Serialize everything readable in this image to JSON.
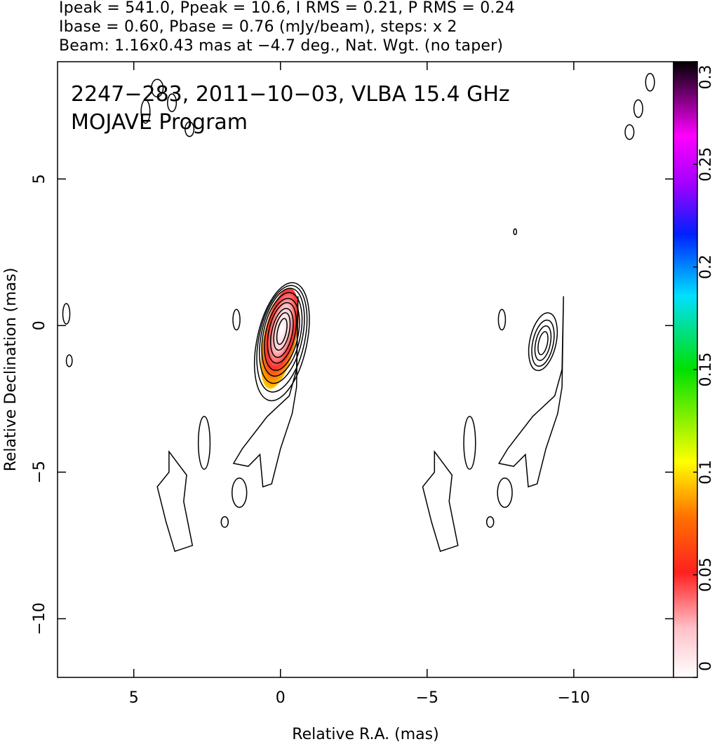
{
  "header": {
    "line1": "Ipeak = 541.0, Ppeak = 10.6, I RMS = 0.21, P RMS = 0.24",
    "line2": "Ibase = 0.60, Pbase = 0.76 (mJy/beam), steps: x 2",
    "line3": "Beam: 1.16x0.43 mas at −4.7 deg., Nat. Wgt. (no taper)"
  },
  "chart_data": {
    "type": "contour",
    "source_label": "2247−283, 2011−10−03, VLBA 15.4 GHz",
    "program_label": "MOJAVE Program",
    "xlabel": "Relative R.A. (mas)",
    "ylabel": "Relative Declination (mas)",
    "xlim": [
      7.6,
      -13.4
    ],
    "ylim": [
      -12.0,
      9.0
    ],
    "x_ticks": [
      {
        "value": 5,
        "label": "5"
      },
      {
        "value": 0,
        "label": "0"
      },
      {
        "value": -5,
        "label": "−5"
      },
      {
        "value": -10,
        "label": "−10"
      }
    ],
    "y_ticks": [
      {
        "value": 5,
        "label": "5"
      },
      {
        "value": 0,
        "label": "0"
      },
      {
        "value": -5,
        "label": "−5"
      },
      {
        "value": -10,
        "label": "−10"
      }
    ],
    "colorbar": {
      "range": [
        0,
        0.3
      ],
      "ticks": [
        {
          "value": 0,
          "label": "0"
        },
        {
          "value": 0.05,
          "label": "0.05"
        },
        {
          "value": 0.1,
          "label": "0.1"
        },
        {
          "value": 0.15,
          "label": "0.15"
        },
        {
          "value": 0.2,
          "label": "0.2"
        },
        {
          "value": 0.25,
          "label": "0.25"
        },
        {
          "value": 0.3,
          "label": "0.3"
        }
      ]
    },
    "panels": [
      {
        "name": "total-intensity",
        "core": {
          "x": -0.05,
          "y": -0.1
        },
        "contours": [
          {
            "cx": -0.05,
            "cy": -0.2,
            "rx": 0.15,
            "ry": 0.45
          },
          {
            "cx": -0.05,
            "cy": -0.2,
            "rx": 0.25,
            "ry": 0.65
          },
          {
            "cx": -0.05,
            "cy": -0.25,
            "rx": 0.35,
            "ry": 0.85
          },
          {
            "cx": -0.05,
            "cy": -0.25,
            "rx": 0.45,
            "ry": 1.05
          },
          {
            "cx": -0.05,
            "cy": -0.3,
            "rx": 0.55,
            "ry": 1.25
          },
          {
            "cx": -0.05,
            "cy": -0.3,
            "rx": 0.63,
            "ry": 1.45
          },
          {
            "cx": -0.05,
            "cy": -0.35,
            "rx": 0.7,
            "ry": 1.65
          },
          {
            "cx": -0.05,
            "cy": -0.45,
            "rx": 0.78,
            "ry": 1.85
          },
          {
            "cx": -0.05,
            "cy": -0.55,
            "rx": 0.85,
            "ry": 2.05
          }
        ]
      },
      {
        "name": "polarized-intensity",
        "core": {
          "x": -8.95,
          "y": -0.6
        },
        "contours": [
          {
            "cx": -8.95,
            "cy": -0.6,
            "rx": 0.15,
            "ry": 0.4
          },
          {
            "cx": -8.95,
            "cy": -0.6,
            "rx": 0.25,
            "ry": 0.6
          },
          {
            "cx": -8.95,
            "cy": -0.6,
            "rx": 0.35,
            "ry": 0.8
          },
          {
            "cx": -8.95,
            "cy": -0.55,
            "rx": 0.45,
            "ry": 1.0
          }
        ]
      }
    ]
  },
  "colors": {
    "axes": "#000000",
    "contour": "#000000",
    "colormap": [
      "#ffffff",
      "#ffc0c8",
      "#ff2020",
      "#ff8000",
      "#ffff00",
      "#00e000",
      "#00e0ff",
      "#0020ff",
      "#a000ff",
      "#ff00ff",
      "#000000"
    ]
  }
}
